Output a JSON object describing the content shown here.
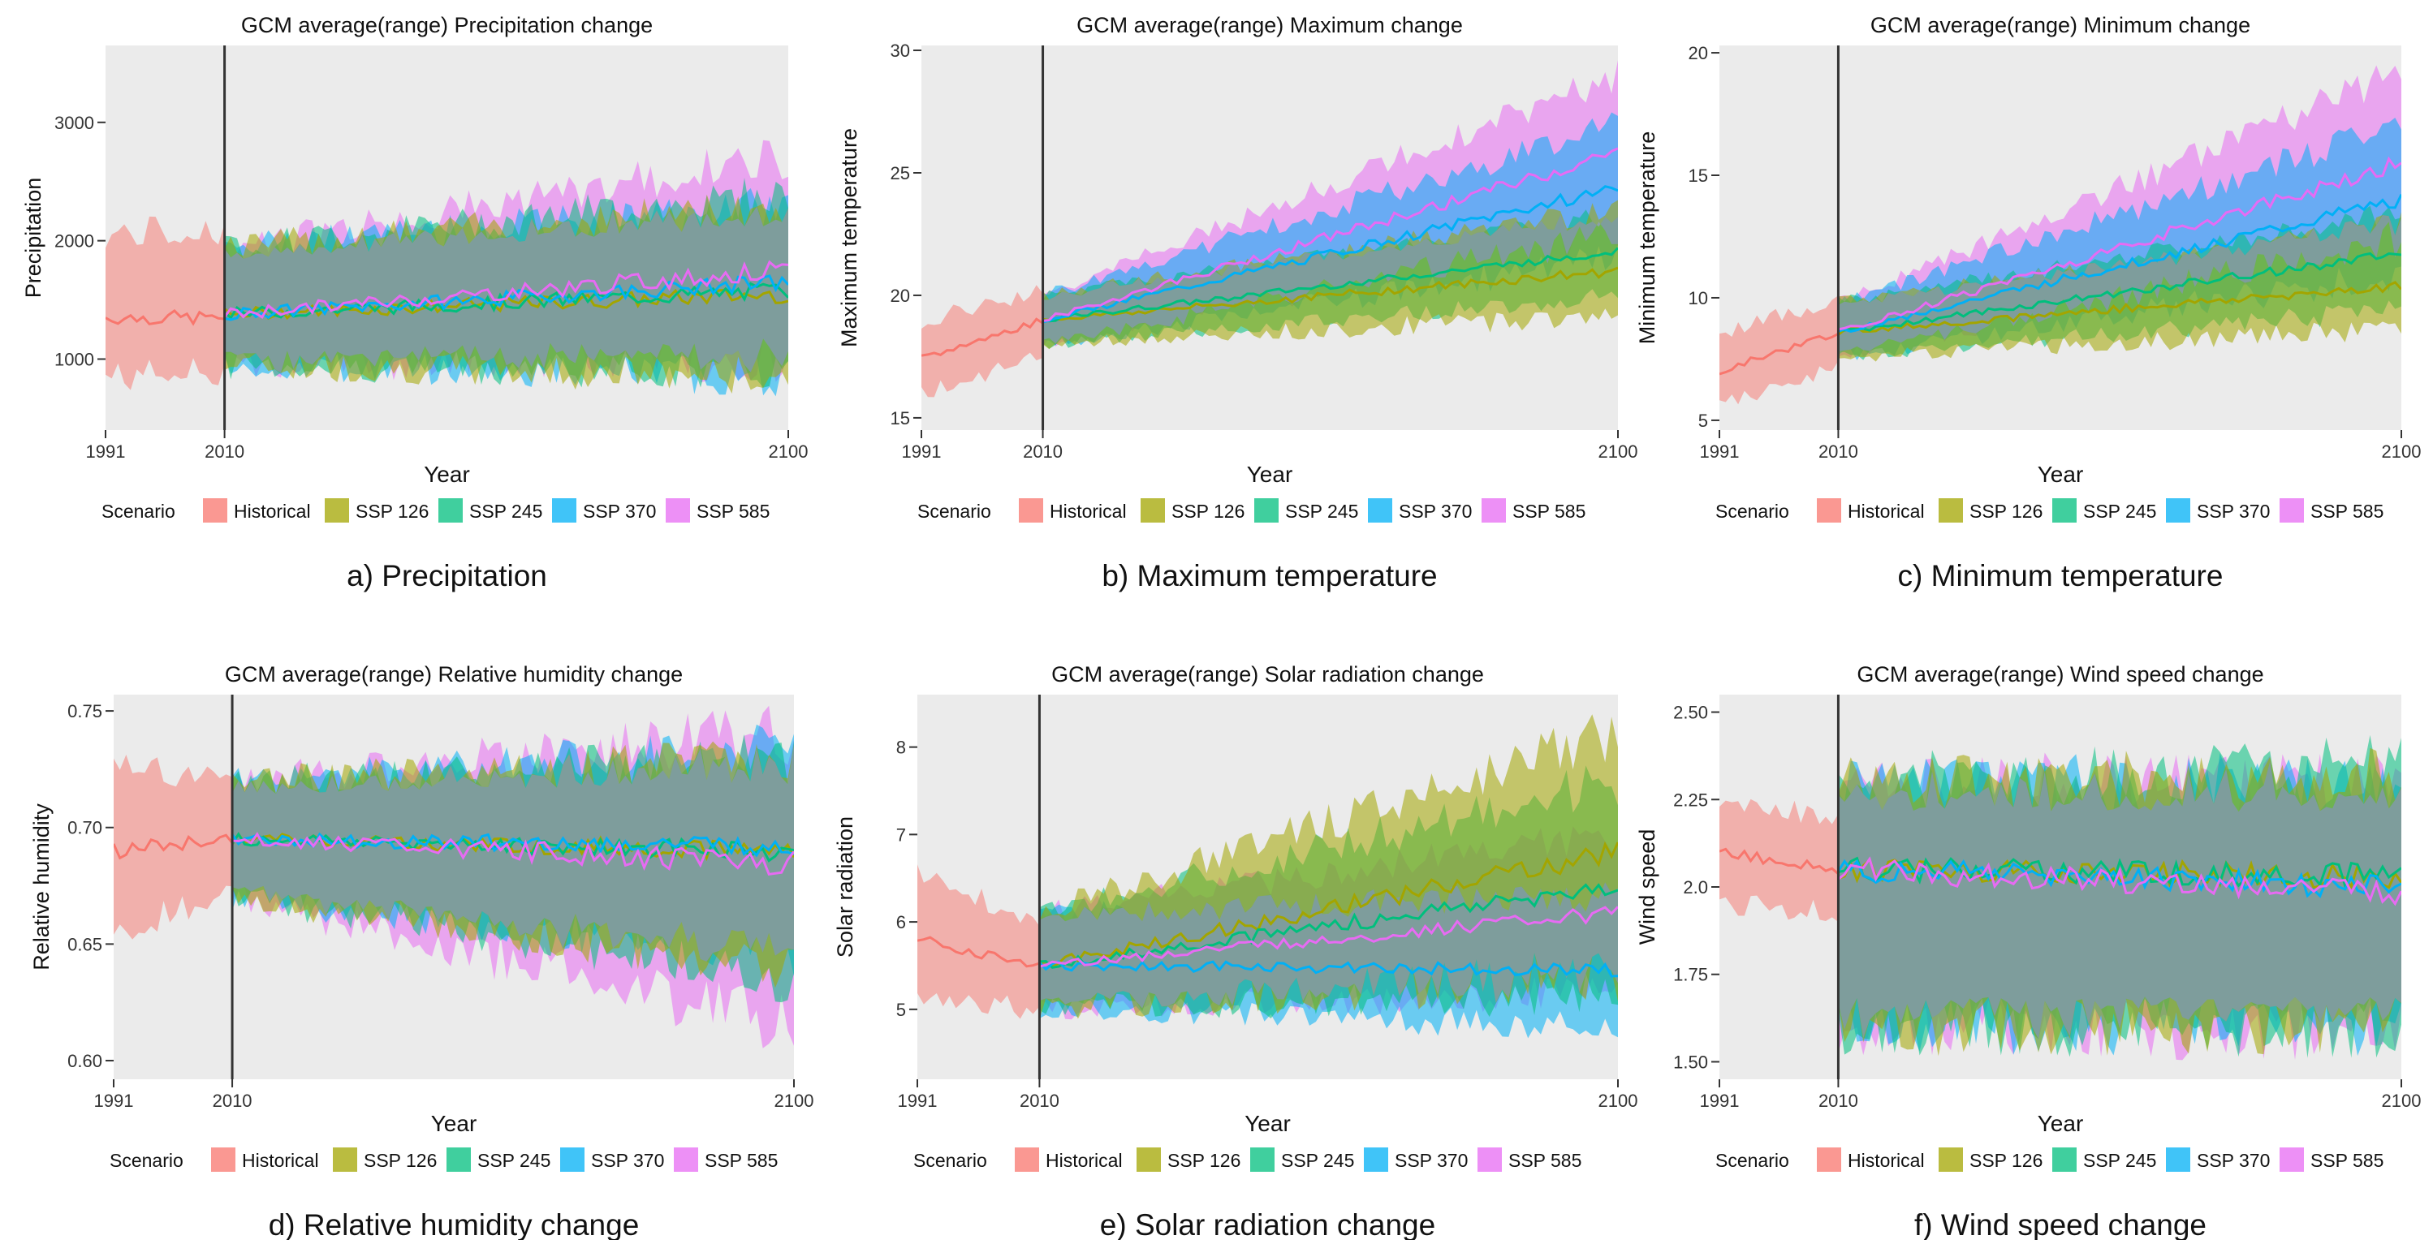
{
  "figure": {
    "legend_title": "Scenario",
    "scenario_colors": {
      "Historical": "#F8766D",
      "SSP 126": "#A3A500",
      "SSP 245": "#00BF7D",
      "SSP 370": "#00B0F6",
      "SSP 585": "#E76BF3",
      "overlap": "#8C8FDB"
    }
  },
  "chart_data": [
    {
      "type": "area",
      "panel_caption": "a) Precipitation",
      "title": "GCM average(range) Precipitation change",
      "xlabel": "Year",
      "ylabel": "Precipitation",
      "xlim": [
        1991,
        2100
      ],
      "ylim": [
        400,
        3650
      ],
      "xticks": [
        1991,
        2010,
        2100
      ],
      "yticks": [
        1000,
        2000,
        3000
      ],
      "ytick_labels": [
        "1000",
        "2000",
        "3000"
      ],
      "divider_year": 2010,
      "legend": [
        "Historical",
        "SSP 126",
        "SSP 245",
        "SSP 370",
        "SSP 585"
      ],
      "series": [
        {
          "name": "Historical",
          "start": [
            1350,
            850,
            2050
          ],
          "end": [
            1350,
            900,
            2100
          ]
        },
        {
          "name": "SSP 126",
          "start": [
            1380,
            950,
            1950
          ],
          "end": [
            1550,
            850,
            2300
          ]
        },
        {
          "name": "SSP 245",
          "start": [
            1380,
            950,
            1950
          ],
          "end": [
            1580,
            900,
            2400
          ]
        },
        {
          "name": "SSP 370",
          "start": [
            1380,
            950,
            1950
          ],
          "end": [
            1650,
            850,
            2300
          ]
        },
        {
          "name": "SSP 585",
          "start": [
            1380,
            950,
            1950
          ],
          "end": [
            1750,
            1000,
            2700
          ]
        }
      ]
    },
    {
      "type": "area",
      "panel_caption": "b) Maximum temperature",
      "title": "GCM average(range) Maximum change",
      "xlabel": "Year",
      "ylabel": "Maximum temperature",
      "xlim": [
        1991,
        2100
      ],
      "ylim": [
        14.5,
        30.2
      ],
      "xticks": [
        1991,
        2010,
        2100
      ],
      "yticks": [
        15,
        20,
        25,
        30
      ],
      "ytick_labels": [
        "15",
        "20",
        "25",
        "30"
      ],
      "divider_year": 2010,
      "legend": [
        "Historical",
        "SSP 126",
        "SSP 245",
        "SSP 370",
        "SSP 585"
      ],
      "series": [
        {
          "name": "Historical",
          "start": [
            17.4,
            16.0,
            19.0
          ],
          "end": [
            19.0,
            17.5,
            20.2
          ]
        },
        {
          "name": "SSP 126",
          "start": [
            19.0,
            18.0,
            20.0
          ],
          "end": [
            21.0,
            19.2,
            23.5
          ]
        },
        {
          "name": "SSP 245",
          "start": [
            19.0,
            18.0,
            20.0
          ],
          "end": [
            21.8,
            20.0,
            23.3
          ]
        },
        {
          "name": "SSP 370",
          "start": [
            19.0,
            18.0,
            20.0
          ],
          "end": [
            24.4,
            21.5,
            27.0
          ]
        },
        {
          "name": "SSP 585",
          "start": [
            19.0,
            18.0,
            20.0
          ],
          "end": [
            25.8,
            22.5,
            29.0
          ]
        }
      ]
    },
    {
      "type": "area",
      "panel_caption": "c) Minimum temperature",
      "title": "GCM average(range) Minimum change",
      "xlabel": "Year",
      "ylabel": "Minimum temperature",
      "xlim": [
        1991,
        2100
      ],
      "ylim": [
        4.6,
        20.3
      ],
      "xticks": [
        1991,
        2010,
        2100
      ],
      "yticks": [
        5,
        10,
        15,
        20
      ],
      "ytick_labels": [
        "5",
        "10",
        "15",
        "20"
      ],
      "divider_year": 2010,
      "legend": [
        "Historical",
        "SSP 126",
        "SSP 245",
        "SSP 370",
        "SSP 585"
      ],
      "series": [
        {
          "name": "Historical",
          "start": [
            7.0,
            5.6,
            8.5
          ],
          "end": [
            8.6,
            7.2,
            10.0
          ]
        },
        {
          "name": "SSP 126",
          "start": [
            8.6,
            7.6,
            9.8
          ],
          "end": [
            10.5,
            8.7,
            13.0
          ]
        },
        {
          "name": "SSP 245",
          "start": [
            8.6,
            7.6,
            9.8
          ],
          "end": [
            11.8,
            9.5,
            13.5
          ]
        },
        {
          "name": "SSP 370",
          "start": [
            8.6,
            7.6,
            9.8
          ],
          "end": [
            14.0,
            11.0,
            17.0
          ]
        },
        {
          "name": "SSP 585",
          "start": [
            8.6,
            7.6,
            9.8
          ],
          "end": [
            15.5,
            12.5,
            19.2
          ]
        }
      ]
    },
    {
      "type": "area",
      "panel_caption": "d) Relative humidity change",
      "title": "GCM average(range) Relative humidity change",
      "xlabel": "Year",
      "ylabel": "Relative humidity",
      "xlim": [
        1991,
        2100
      ],
      "ylim": [
        0.592,
        0.757
      ],
      "xticks": [
        1991,
        2010,
        2100
      ],
      "yticks": [
        0.6,
        0.65,
        0.7,
        0.75
      ],
      "ytick_labels": [
        "0.60",
        "0.65",
        "0.70",
        "0.75"
      ],
      "divider_year": 2010,
      "legend": [
        "Historical",
        "SSP 126",
        "SSP 245",
        "SSP 370",
        "SSP 585"
      ],
      "series": [
        {
          "name": "Historical",
          "start": [
            0.69,
            0.655,
            0.725
          ],
          "end": [
            0.695,
            0.67,
            0.72
          ]
        },
        {
          "name": "SSP 126",
          "start": [
            0.695,
            0.67,
            0.72
          ],
          "end": [
            0.69,
            0.64,
            0.73
          ]
        },
        {
          "name": "SSP 245",
          "start": [
            0.695,
            0.67,
            0.72
          ],
          "end": [
            0.69,
            0.635,
            0.73
          ]
        },
        {
          "name": "SSP 370",
          "start": [
            0.695,
            0.67,
            0.72
          ],
          "end": [
            0.692,
            0.645,
            0.735
          ]
        },
        {
          "name": "SSP 585",
          "start": [
            0.695,
            0.67,
            0.72
          ],
          "end": [
            0.685,
            0.615,
            0.74
          ]
        }
      ]
    },
    {
      "type": "area",
      "panel_caption": "e) Solar radiation change",
      "title": "GCM average(range) Solar radiation change",
      "xlabel": "Year",
      "ylabel": "Solar radiation",
      "xlim": [
        1991,
        2100
      ],
      "ylim": [
        4.2,
        8.6
      ],
      "xticks": [
        1991,
        2010,
        2100
      ],
      "yticks": [
        5,
        6,
        7,
        8
      ],
      "ytick_labels": [
        "5",
        "6",
        "7",
        "8"
      ],
      "divider_year": 2010,
      "legend": [
        "Historical",
        "SSP 126",
        "SSP 245",
        "SSP 370",
        "SSP 585"
      ],
      "series": [
        {
          "name": "Historical",
          "start": [
            5.8,
            5.1,
            6.6
          ],
          "end": [
            5.5,
            5.0,
            6.0
          ]
        },
        {
          "name": "SSP 126",
          "start": [
            5.5,
            5.0,
            6.1
          ],
          "end": [
            6.8,
            5.4,
            8.2
          ]
        },
        {
          "name": "SSP 245",
          "start": [
            5.5,
            5.0,
            6.1
          ],
          "end": [
            6.4,
            5.2,
            7.6
          ]
        },
        {
          "name": "SSP 370",
          "start": [
            5.5,
            5.0,
            6.1
          ],
          "end": [
            5.45,
            4.8,
            6.3
          ]
        },
        {
          "name": "SSP 585",
          "start": [
            5.5,
            5.0,
            6.1
          ],
          "end": [
            6.1,
            5.2,
            7.0
          ]
        }
      ]
    },
    {
      "type": "area",
      "panel_caption": "f) Wind speed change",
      "title": "GCM average(range) Wind speed change",
      "xlabel": "Year",
      "ylabel": "Wind speed",
      "xlim": [
        1991,
        2100
      ],
      "ylim": [
        1.45,
        2.55
      ],
      "xticks": [
        1991,
        2010,
        2100
      ],
      "yticks": [
        1.5,
        1.75,
        2.0,
        2.25,
        2.5
      ],
      "ytick_labels": [
        "1.50",
        "1.75",
        "2.0",
        "2.25",
        "2.50"
      ],
      "divider_year": 2010,
      "legend": [
        "Historical",
        "SSP 126",
        "SSP 245",
        "SSP 370",
        "SSP 585"
      ],
      "series": [
        {
          "name": "Historical",
          "start": [
            2.1,
            1.95,
            2.25
          ],
          "end": [
            2.05,
            1.93,
            2.2
          ]
        },
        {
          "name": "SSP 126",
          "start": [
            2.05,
            1.6,
            2.3
          ],
          "end": [
            2.03,
            1.6,
            2.32
          ]
        },
        {
          "name": "SSP 245",
          "start": [
            2.05,
            1.6,
            2.3
          ],
          "end": [
            2.03,
            1.6,
            2.35
          ]
        },
        {
          "name": "SSP 370",
          "start": [
            2.05,
            1.6,
            2.3
          ],
          "end": [
            2.0,
            1.6,
            2.3
          ]
        },
        {
          "name": "SSP 585",
          "start": [
            2.05,
            1.6,
            2.3
          ],
          "end": [
            1.98,
            1.58,
            2.3
          ]
        }
      ]
    }
  ]
}
